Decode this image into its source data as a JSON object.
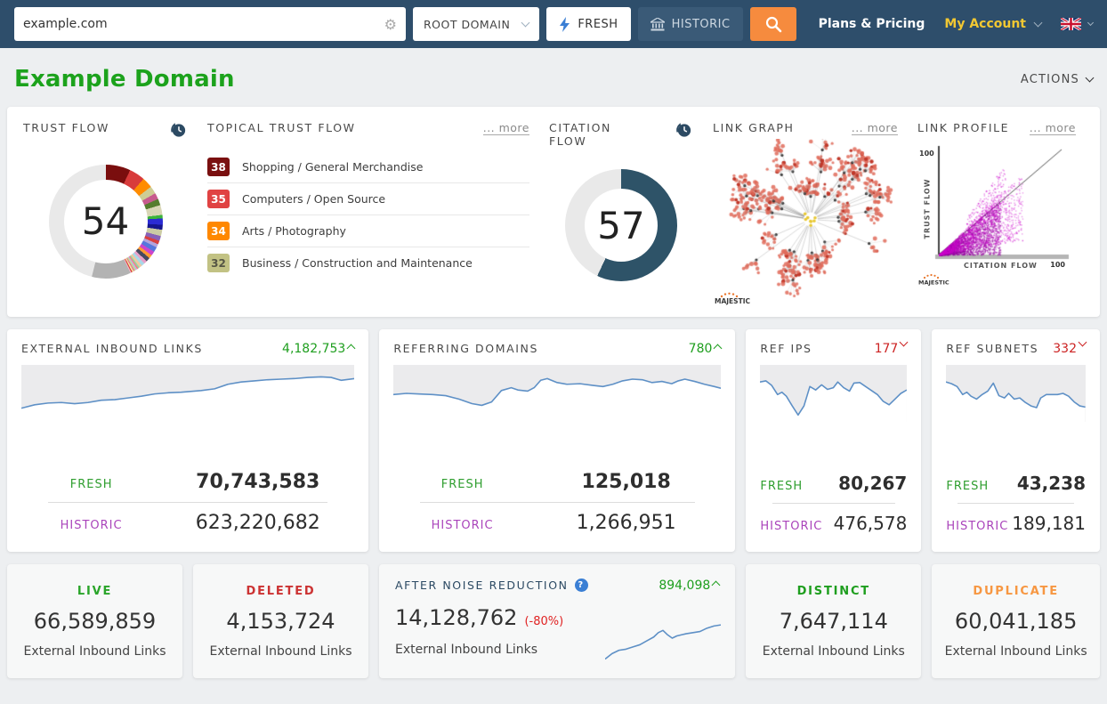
{
  "topbar": {
    "search_value": "example.com",
    "domain_select": "ROOT DOMAIN",
    "fresh_label": "FRESH",
    "historic_label": "HISTORIC",
    "plans_label": "Plans & Pricing",
    "account_label": "My Account"
  },
  "header": {
    "title": "Example Domain",
    "actions_label": "ACTIONS"
  },
  "overview": {
    "trust_flow": {
      "label": "TRUST FLOW",
      "score": "54"
    },
    "topical": {
      "label": "TOPICAL TRUST FLOW",
      "more": "... more",
      "items": [
        {
          "score": "38",
          "bg": "#7a1010",
          "fg": "#ffffff",
          "label": "Shopping / General Merchandise"
        },
        {
          "score": "35",
          "bg": "#e04343",
          "fg": "#ffffff",
          "label": "Computers / Open Source"
        },
        {
          "score": "34",
          "bg": "#ff8800",
          "fg": "#ffffff",
          "label": "Arts / Photography"
        },
        {
          "score": "32",
          "bg": "#c2c284",
          "fg": "#555544",
          "label": "Business / Construction and Maintenance"
        }
      ]
    },
    "citation_flow": {
      "label": "CITATION FLOW",
      "score": "57"
    },
    "link_graph": {
      "label": "LINK GRAPH",
      "more": "... more",
      "brand": "MAJESTIC"
    },
    "link_profile": {
      "label": "LINK PROFILE",
      "more": "... more",
      "brand": "MAJESTIC",
      "y_max": "100",
      "x_max": "100",
      "y_label": "TRUST FLOW",
      "x_label": "CITATION FLOW"
    }
  },
  "metrics": [
    {
      "title": "EXTERNAL INBOUND LINKS",
      "delta": "4,182,753",
      "direction": "up",
      "fresh_label": "FRESH",
      "fresh": "70,743,583",
      "historic_label": "HISTORIC",
      "historic": "623,220,682"
    },
    {
      "title": "REFERRING DOMAINS",
      "delta": "780",
      "direction": "up",
      "fresh_label": "FRESH",
      "fresh": "125,018",
      "historic_label": "HISTORIC",
      "historic": "1,266,951"
    },
    {
      "title": "REF IPS",
      "delta": "177",
      "direction": "down",
      "fresh_label": "FRESH",
      "fresh": "80,267",
      "historic_label": "HISTORIC",
      "historic": "476,578"
    },
    {
      "title": "REF SUBNETS",
      "delta": "332",
      "direction": "down",
      "fresh_label": "FRESH",
      "fresh": "43,238",
      "historic_label": "HISTORIC",
      "historic": "189,181"
    }
  ],
  "summary": [
    {
      "label": "LIVE",
      "color": "#2aa52a",
      "value": "66,589,859",
      "caption": "External Inbound Links"
    },
    {
      "label": "DELETED",
      "color": "#cc3333",
      "value": "4,153,724",
      "caption": "External Inbound Links"
    },
    {
      "label": "AFTER NOISE REDUCTION",
      "delta": "894,098",
      "direction": "up",
      "value": "14,128,762",
      "pct": "(-80%)",
      "caption": "External Inbound Links"
    },
    {
      "label": "DISTINCT",
      "color": "#1e9e1e",
      "value": "7,647,114",
      "caption": "External Inbound Links"
    },
    {
      "label": "DUPLICATE",
      "color": "#f79742",
      "value": "60,041,185",
      "caption": "External Inbound Links"
    }
  ],
  "chart_data": [
    {
      "type": "pie",
      "title": "Trust Flow",
      "value": 54,
      "max": 100,
      "segments": [
        [
          "#7a0e0e",
          7
        ],
        [
          "#d83b3b",
          4.5
        ],
        [
          "#ff8c00",
          3
        ],
        [
          "#cdcd96",
          2.2
        ],
        [
          "#c75b8e",
          1.8
        ],
        [
          "#567d2e",
          1.8
        ],
        [
          "#d9d6b6",
          2.8
        ],
        [
          "#3cb43c",
          1
        ],
        [
          "#2b2bd4",
          1.8
        ],
        [
          "#16168e",
          1.4
        ],
        [
          "#cbcba4",
          1.8
        ],
        [
          "#8861b8",
          1.4
        ],
        [
          "#d94040",
          1
        ],
        [
          "#b4a4dc",
          1
        ],
        [
          "#5577dd",
          1.4
        ],
        [
          "#cc44cc",
          1.2
        ],
        [
          "#ff9933",
          1
        ],
        [
          "#464a60",
          1.2
        ],
        [
          "#e8a0c8",
          0.9
        ],
        [
          "#a8d8e8",
          0.9
        ],
        [
          "#f0c8a0",
          0.8
        ],
        [
          "#8fd8a8",
          0.4
        ],
        [
          "#f08878",
          0.4
        ],
        [
          "#c8a8e8",
          0.4
        ],
        [
          "#b8e890",
          0.4
        ],
        [
          "#e87898",
          0.4
        ],
        [
          "#f0e8a0",
          0.4
        ],
        [
          "#d84040",
          0.3
        ],
        [
          "#f0b8c8",
          0.3
        ],
        [
          "#b3b3b3",
          11.1
        ]
      ],
      "track_color": "#e9e9e9"
    },
    {
      "type": "pie",
      "title": "Citation Flow",
      "value": 57,
      "max": 100,
      "color": "#2e5368",
      "track_color": "#e9e9e9"
    },
    {
      "type": "line",
      "title": "External Inbound Links trend",
      "series_color": "#5e90c6",
      "x": "time (unlabeled)",
      "points": [
        [
          0,
          76
        ],
        [
          4,
          70
        ],
        [
          8,
          67
        ],
        [
          12,
          66
        ],
        [
          16,
          68
        ],
        [
          20,
          66
        ],
        [
          24,
          62
        ],
        [
          28,
          61
        ],
        [
          32,
          58
        ],
        [
          36,
          55
        ],
        [
          40,
          51
        ],
        [
          44,
          49
        ],
        [
          48,
          48
        ],
        [
          52,
          46
        ],
        [
          54,
          45
        ],
        [
          58,
          42
        ],
        [
          62,
          34
        ],
        [
          66,
          30
        ],
        [
          70,
          28
        ],
        [
          74,
          26
        ],
        [
          78,
          25
        ],
        [
          82,
          24
        ],
        [
          86,
          22
        ],
        [
          90,
          21
        ],
        [
          93,
          22
        ],
        [
          96,
          27
        ],
        [
          100,
          24
        ]
      ]
    },
    {
      "type": "line",
      "title": "Referring Domains trend",
      "series_color": "#5e90c6",
      "x": "time (unlabeled)",
      "points": [
        [
          0,
          52
        ],
        [
          4,
          50
        ],
        [
          8,
          51
        ],
        [
          12,
          52
        ],
        [
          16,
          54
        ],
        [
          20,
          60
        ],
        [
          24,
          68
        ],
        [
          27,
          71
        ],
        [
          30,
          65
        ],
        [
          33,
          45
        ],
        [
          36,
          40
        ],
        [
          38,
          44
        ],
        [
          41,
          46
        ],
        [
          43,
          40
        ],
        [
          45,
          27
        ],
        [
          47,
          24
        ],
        [
          50,
          31
        ],
        [
          53,
          34
        ],
        [
          57,
          33
        ],
        [
          61,
          36
        ],
        [
          64,
          38
        ],
        [
          67,
          34
        ],
        [
          70,
          28
        ],
        [
          73,
          25
        ],
        [
          76,
          26
        ],
        [
          79,
          31
        ],
        [
          82,
          29
        ],
        [
          85,
          33
        ],
        [
          87,
          28
        ],
        [
          89,
          25
        ],
        [
          92,
          29
        ],
        [
          95,
          34
        ],
        [
          98,
          38
        ],
        [
          100,
          41
        ]
      ]
    },
    {
      "type": "line",
      "title": "Ref IPs trend",
      "series_color": "#5e90c6",
      "x": "time (unlabeled)",
      "points": [
        [
          0,
          30
        ],
        [
          4,
          28
        ],
        [
          8,
          36
        ],
        [
          12,
          52
        ],
        [
          15,
          48
        ],
        [
          18,
          55
        ],
        [
          22,
          72
        ],
        [
          26,
          88
        ],
        [
          30,
          72
        ],
        [
          34,
          38
        ],
        [
          38,
          44
        ],
        [
          42,
          35
        ],
        [
          46,
          43
        ],
        [
          50,
          40
        ],
        [
          53,
          30
        ],
        [
          57,
          40
        ],
        [
          61,
          46
        ],
        [
          64,
          32
        ],
        [
          68,
          31
        ],
        [
          72,
          38
        ],
        [
          76,
          45
        ],
        [
          80,
          52
        ],
        [
          84,
          64
        ],
        [
          88,
          70
        ],
        [
          92,
          60
        ],
        [
          96,
          50
        ],
        [
          100,
          44
        ]
      ]
    },
    {
      "type": "line",
      "title": "Ref Subnets trend",
      "series_color": "#5e90c6",
      "x": "time (unlabeled)",
      "points": [
        [
          0,
          30
        ],
        [
          4,
          33
        ],
        [
          8,
          38
        ],
        [
          12,
          52
        ],
        [
          15,
          48
        ],
        [
          18,
          55
        ],
        [
          22,
          60
        ],
        [
          26,
          52
        ],
        [
          30,
          46
        ],
        [
          34,
          32
        ],
        [
          38,
          54
        ],
        [
          42,
          58
        ],
        [
          45,
          50
        ],
        [
          49,
          60
        ],
        [
          53,
          58
        ],
        [
          57,
          66
        ],
        [
          61,
          72
        ],
        [
          65,
          75
        ],
        [
          68,
          58
        ],
        [
          72,
          52
        ],
        [
          76,
          52
        ],
        [
          80,
          52
        ],
        [
          84,
          50
        ],
        [
          88,
          55
        ],
        [
          92,
          65
        ],
        [
          96,
          72
        ],
        [
          100,
          74
        ]
      ]
    },
    {
      "type": "line",
      "title": "After Noise Reduction trend",
      "series_color": "#5e90c6",
      "x": "time (unlabeled)",
      "points": [
        [
          0,
          88
        ],
        [
          6,
          78
        ],
        [
          12,
          72
        ],
        [
          18,
          70
        ],
        [
          24,
          66
        ],
        [
          30,
          62
        ],
        [
          36,
          55
        ],
        [
          42,
          48
        ],
        [
          46,
          40
        ],
        [
          50,
          36
        ],
        [
          54,
          44
        ],
        [
          58,
          50
        ],
        [
          62,
          46
        ],
        [
          66,
          44
        ],
        [
          70,
          42
        ],
        [
          76,
          40
        ],
        [
          82,
          38
        ],
        [
          88,
          32
        ],
        [
          94,
          28
        ],
        [
          100,
          26
        ]
      ]
    },
    {
      "type": "scatter",
      "title": "Link Profile",
      "xlabel": "CITATION FLOW",
      "ylabel": "TRUST FLOW",
      "xlim": [
        0,
        100
      ],
      "ylim": [
        0,
        100
      ],
      "point_color": "#cc00cc",
      "description": "dense magenta wedge below the y=x diagonal, concentrated at low citation/trust values"
    }
  ]
}
